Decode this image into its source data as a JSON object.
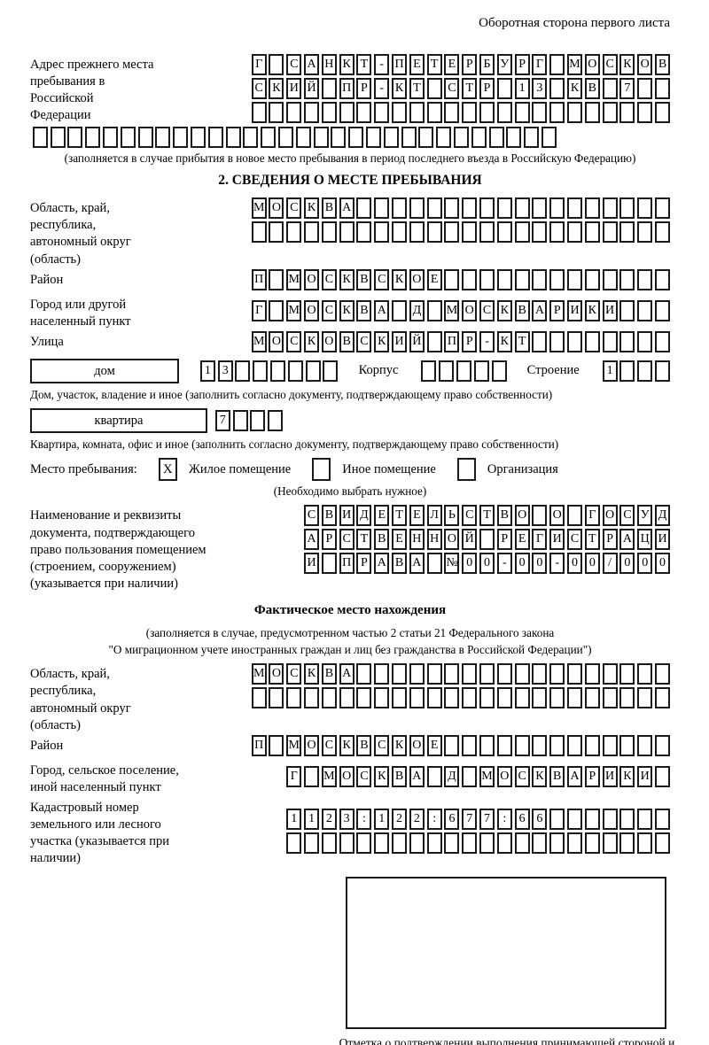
{
  "page": {
    "corner_note": "Оборотная сторона первого листа"
  },
  "prev_address": {
    "label": "Адрес прежнего места пребывания в Российской Федерации",
    "rows": [
      "Г САНКТ-ПЕТЕРБУРГ МОСКОВ",
      "СКИЙ ПР-КТ СТР 13 КВ 7  ",
      "                        "
    ],
    "overflow_row": "                              ",
    "note": "(заполняется в случае прибытия в новое место пребывания в период последнего въезда в Российскую Федерацию)"
  },
  "section2": {
    "title": "2. СВЕДЕНИЯ О МЕСТЕ ПРЕБЫВАНИЯ",
    "region": {
      "label": "Область, край, республика, автономный округ (область)",
      "rows": [
        "МОСКВА                  ",
        "                        "
      ]
    },
    "district": {
      "label": "Район",
      "row": "П МОСКВСКОЕ             "
    },
    "city": {
      "label": "Город или другой населенный пункт",
      "row": "Г МОСКВА Д МОСКВАРИКИ   "
    },
    "street": {
      "label": "Улица",
      "row": "МОСКОВСКИЙ ПР-КТ        "
    },
    "house": {
      "box_label": "дом",
      "cells": "13      ",
      "korpus_label": "Корпус",
      "korpus_cells": "     ",
      "stroenie_label": "Строение",
      "stroenie_cells": "1   ",
      "note": "Дом, участок, владение и иное (заполнить согласно документу, подтверждающему право собственности)"
    },
    "apartment": {
      "box_label": "квартира",
      "cells": "7   ",
      "note": "Квартира, комната, офис и иное (заполнить согласно документу, подтверждающему право собственности)"
    },
    "stay_type": {
      "label": "Место пребывания:",
      "options": [
        {
          "label": "Жилое помещение",
          "mark": "X"
        },
        {
          "label": "Иное помещение",
          "mark": ""
        },
        {
          "label": "Организация",
          "mark": ""
        }
      ],
      "note": "(Необходимо выбрать нужное)"
    },
    "document": {
      "label": "Наименование и реквизиты документа, подтверждающего право пользования помещением (строением, сооружением) (указывается при наличии)",
      "rows": [
        "СВИДЕТЕЛЬСТВО О ГОСУД",
        "АРСТВЕННОЙ РЕГИСТРАЦИ",
        "И ПРАВА №00-00-00/000"
      ]
    }
  },
  "actual_location": {
    "title": "Фактическое место нахождения",
    "note_line1": "(заполняется в случае, предусмотренном частью 2 статьи 21 Федерального закона",
    "note_line2": "\"О миграционном учете иностранных граждан и лиц без гражданства в Российской Федерации\")",
    "region": {
      "label": "Область, край, республика, автономный округ (область)",
      "rows": [
        "МОСКВА                  ",
        "                        "
      ]
    },
    "district": {
      "label": "Район",
      "row": "П МОСКВСКОЕ             "
    },
    "city": {
      "label": "Город, сельское поселение, иной населенный пункт",
      "row": "Г МОСКВА Д МОСКВАРИКИ "
    },
    "cadastral": {
      "label": "Кадастровый номер земельного или лесного участка (указывается при наличии)",
      "rows": [
        "1123:122:677:66       ",
        "                      "
      ]
    }
  },
  "stamp": {
    "caption": "Отметка о подтверждении выполнения принимающей стороной и иностранным гражданином или лицом без гражданства действий, необходимых для его постановки на учет по месту пребывания"
  }
}
